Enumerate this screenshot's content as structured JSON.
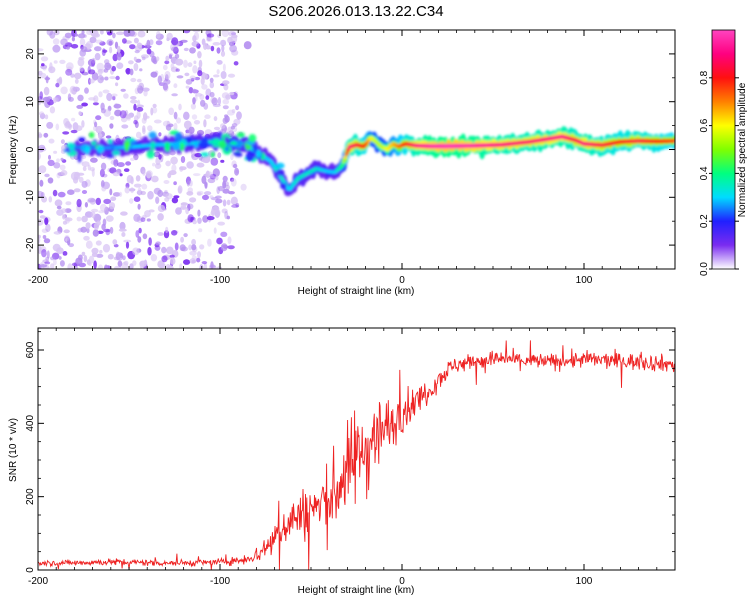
{
  "figure_title": "S206.2026.013.13.22.C34",
  "colors": {
    "snr_line": "#ee2222",
    "axis": "#000000",
    "background": "#ffffff",
    "scatter_light": "#d8c4f4",
    "scatter_dark": "#7a2cf0"
  },
  "chart_data": [
    {
      "type": "heatmap",
      "name": "spectrogram",
      "xlabel": "Height of straight line (km)",
      "ylabel": "Frequency (Hz)",
      "xlim": [
        -200,
        150
      ],
      "ylim": [
        -25,
        25
      ],
      "xticks": [
        -200,
        -100,
        0,
        100
      ],
      "xtick_labels": [
        "-200",
        "-100",
        "0",
        "100"
      ],
      "yticks": [
        -20,
        -10,
        0,
        10,
        20
      ],
      "ytick_labels": [
        "-20",
        "-10",
        "0",
        "10",
        "20"
      ],
      "noise_region_x": [
        -200,
        -90
      ],
      "ridge": {
        "x": [
          -180,
          -165,
          -150,
          -135,
          -120,
          -105,
          -95,
          -85,
          -78,
          -72,
          -67,
          -62,
          -57,
          -52,
          -47,
          -42,
          -37,
          -33,
          -29,
          -25,
          -21,
          -17,
          -14,
          -11,
          -8,
          -5,
          -2,
          2,
          8,
          15,
          25,
          40,
          55,
          70,
          80,
          88,
          95,
          100,
          110,
          120,
          130,
          140,
          150
        ],
        "y": [
          0.5,
          0.3,
          0.5,
          1.0,
          1.2,
          1.6,
          1.5,
          0.8,
          -1.0,
          -2.5,
          -5.5,
          -8.5,
          -6.0,
          -5.0,
          -4.0,
          -4.5,
          -4.8,
          -3.5,
          0.5,
          1.0,
          0.6,
          2.5,
          1.5,
          0.5,
          0.0,
          1.2,
          0.6,
          1.2,
          0.8,
          0.7,
          0.7,
          0.8,
          1.0,
          1.6,
          2.2,
          2.7,
          2.0,
          1.2,
          0.9,
          1.6,
          1.8,
          1.7,
          1.8
        ],
        "amplitude": [
          0.25,
          0.25,
          0.3,
          0.3,
          0.3,
          0.35,
          0.4,
          0.35,
          0.3,
          0.3,
          0.35,
          0.3,
          0.35,
          0.35,
          0.35,
          0.3,
          0.3,
          0.4,
          0.9,
          0.85,
          0.8,
          0.6,
          0.55,
          0.55,
          0.6,
          0.65,
          0.7,
          0.8,
          0.9,
          0.95,
          0.98,
          0.95,
          0.9,
          0.88,
          0.9,
          0.92,
          0.85,
          0.9,
          0.85,
          0.8,
          0.85,
          0.8,
          0.75
        ]
      }
    },
    {
      "type": "colorbar",
      "name": "amplitude-colorbar",
      "label": "Normalized spectral amplitude",
      "range": [
        0,
        1
      ],
      "ticks": [
        0.0,
        0.2,
        0.4,
        0.6,
        0.8
      ],
      "tick_labels": [
        "0.0",
        "0.2",
        "0.4",
        "0.6",
        "0.8"
      ],
      "colormap_stops": [
        "#ffffff",
        "#7a2cf0",
        "#2020ff",
        "#00dcff",
        "#00ff80",
        "#80ff00",
        "#ffff00",
        "#ff8000",
        "#ff1010",
        "#ff0080",
        "#ff44c0"
      ]
    },
    {
      "type": "line",
      "name": "snr",
      "xlabel": "Height of straight line (km)",
      "ylabel": "SNR (10 * v/v)",
      "xlim": [
        -200,
        150
      ],
      "ylim": [
        0,
        660
      ],
      "xticks": [
        -200,
        -100,
        0,
        100
      ],
      "xtick_labels": [
        "-200",
        "-100",
        "0",
        "100"
      ],
      "yticks": [
        0,
        200,
        400,
        600
      ],
      "ytick_labels": [
        "0",
        "200",
        "400",
        "600"
      ],
      "series": [
        {
          "name": "SNR",
          "x": [
            -200,
            -180,
            -160,
            -140,
            -120,
            -100,
            -90,
            -80,
            -75,
            -70,
            -65,
            -60,
            -55,
            -50,
            -45,
            -40,
            -35,
            -30,
            -25,
            -20,
            -15,
            -10,
            -5,
            0,
            5,
            10,
            15,
            20,
            25,
            30,
            40,
            50,
            60,
            70,
            80,
            90,
            100,
            110,
            120,
            130,
            140,
            150
          ],
          "mean": [
            18,
            20,
            22,
            20,
            19,
            22,
            25,
            40,
            60,
            90,
            120,
            140,
            150,
            165,
            175,
            190,
            230,
            270,
            310,
            330,
            370,
            380,
            400,
            430,
            450,
            470,
            490,
            520,
            545,
            560,
            570,
            575,
            575,
            570,
            568,
            570,
            575,
            572,
            570,
            568,
            565,
            560
          ],
          "spread": [
            10,
            10,
            12,
            12,
            12,
            12,
            14,
            30,
            50,
            60,
            70,
            80,
            90,
            100,
            110,
            130,
            150,
            160,
            170,
            170,
            150,
            120,
            90,
            70,
            60,
            50,
            40,
            40,
            35,
            30,
            30,
            30,
            30,
            30,
            30,
            30,
            30,
            30,
            30,
            30,
            30,
            30
          ]
        }
      ]
    }
  ]
}
